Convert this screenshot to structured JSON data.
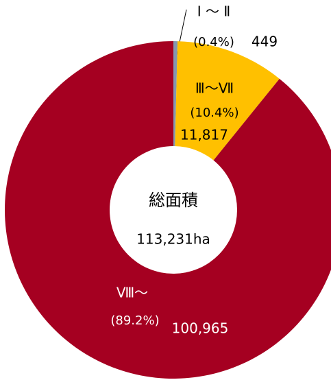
{
  "chart_data": {
    "type": "donut",
    "categories": [
      "Ⅰ ～ Ⅱ",
      "Ⅲ～Ⅶ",
      "Ⅷ～"
    ],
    "values": [
      449,
      11817,
      100965
    ],
    "value_labels": [
      "449",
      "11,817",
      "100,965"
    ],
    "percent_labels": [
      "(0.4%)",
      "(10.4%)",
      "(89.2%)"
    ],
    "colors": [
      "#8497b0",
      "#ffc000",
      "#a50021"
    ],
    "center_title": "総面積",
    "center_total": "113,231ha"
  }
}
